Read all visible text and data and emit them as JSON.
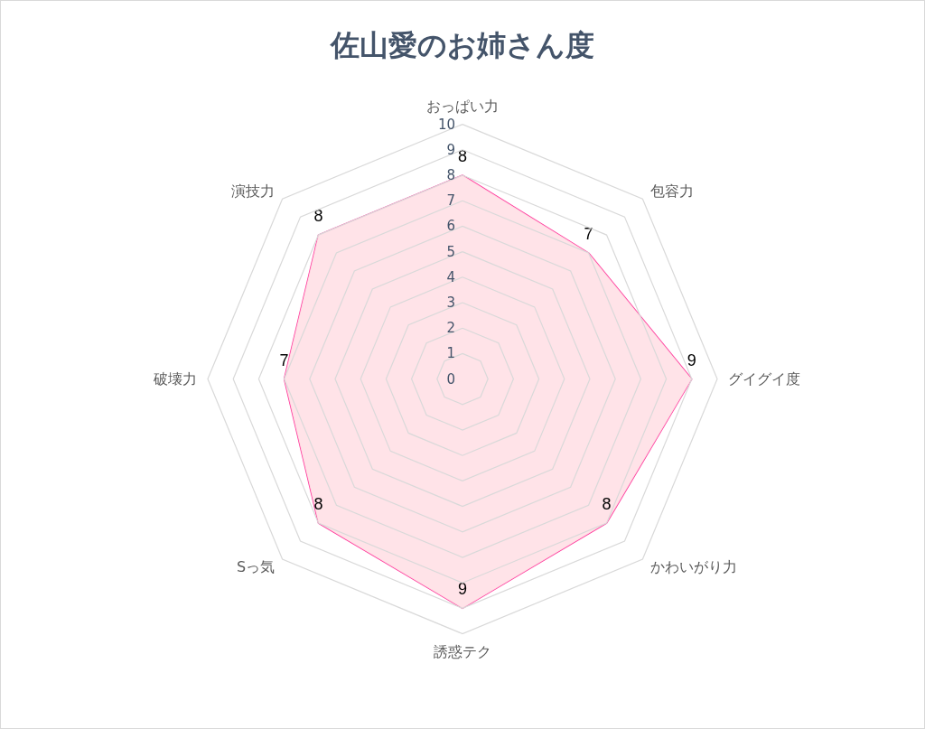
{
  "chart_data": {
    "type": "radar",
    "title": "佐山愛のお姉さん度",
    "categories": [
      "おっぱい力",
      "包容力",
      "グイグイ度",
      "かわいがり力",
      "誘惑テク",
      "Sっ気",
      "破壊力",
      "演技力"
    ],
    "series": [
      {
        "color": "#ff3399",
        "values": [
          8,
          7,
          9,
          8,
          9,
          8,
          7,
          8
        ]
      }
    ],
    "ylim": [
      0,
      10
    ],
    "yticks": [
      0,
      1,
      2,
      3,
      4,
      5,
      6,
      7,
      8,
      9,
      10
    ],
    "data_labels": true,
    "legend": false
  }
}
